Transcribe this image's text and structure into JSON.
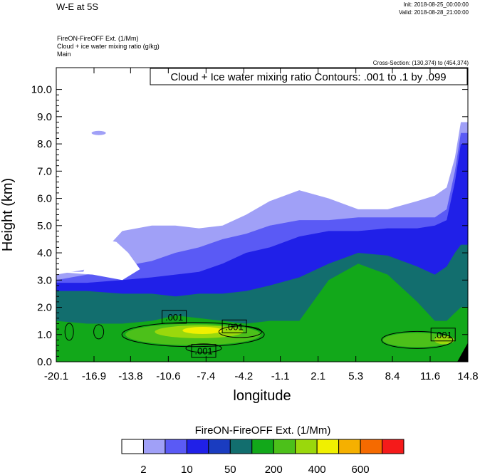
{
  "header": {
    "title": "W-E at 5S",
    "init": "Init: 2018-08-25_00:00:00",
    "valid": "Valid: 2018-08-28_21:00:00",
    "meta_line1": "FireON-FireOFF Ext.   (1/Mm)",
    "meta_line2": "Cloud + ice water mixing ratio   (g/kg)",
    "meta_line3": "Main",
    "cross_section": "Cross-Section: (130,374) to (454,374)"
  },
  "chart_data": {
    "type": "contour",
    "title": "Cloud + Ice water mixing ratio Contours: .001 to .1 by .099",
    "xlabel": "longitude",
    "ylabel": "Height (km)",
    "xlim": [
      -20.1,
      14.8
    ],
    "ylim": [
      0.0,
      10.8
    ],
    "x_ticks": [
      "-20.1",
      "-16.9",
      "-13.8",
      "-10.6",
      "-7.4",
      "-4.2",
      "-1.1",
      "2.1",
      "5.3",
      "8.4",
      "11.6",
      "14.8"
    ],
    "y_ticks": [
      "0.0",
      "1.0",
      "2.0",
      "3.0",
      "4.0",
      "5.0",
      "6.0",
      "7.0",
      "8.0",
      "9.0",
      "10.0"
    ],
    "contour_labels": [
      {
        "text": ".001",
        "x": -10.1,
        "y": 1.65
      },
      {
        "text": ".001",
        "x": -5.0,
        "y": 1.3
      },
      {
        "text": ".001",
        "x": -7.6,
        "y": 0.4
      },
      {
        "text": ".001",
        "x": 12.7,
        "y": 1.0
      }
    ],
    "colorbar": {
      "title": "FireON-FireOFF Ext.  (1/Mm)",
      "labels": [
        "2",
        "10",
        "50",
        "200",
        "400",
        "600"
      ],
      "colors": [
        "#ffffff",
        "#a0a0f7",
        "#5a5af5",
        "#2020e8",
        "#1a3cc0",
        "#126e6e",
        "#12a81a",
        "#4cc01a",
        "#9ad80c",
        "#f0f000",
        "#f5b000",
        "#f56a00",
        "#f51a1a"
      ]
    },
    "fields": {
      "profiles_x": [
        -20.1,
        -17.5,
        -14.5,
        -12.0,
        -10.0,
        -8.0,
        -6.0,
        -4.0,
        -2.0,
        0.5,
        3.0,
        5.5,
        8.0,
        10.5,
        12.0,
        13.0,
        13.7,
        14.2,
        14.8
      ],
      "top_boundary": [
        3.2,
        3.5,
        4.8,
        5.0,
        5.0,
        4.9,
        5.0,
        5.4,
        5.9,
        6.3,
        6.0,
        5.6,
        5.6,
        5.9,
        6.1,
        6.4,
        7.5,
        8.8,
        8.8
      ],
      "light_blue_top": [
        3.2,
        3.4,
        4.8,
        5.0,
        5.0,
        4.9,
        5.0,
        5.4,
        5.9,
        6.3,
        6.0,
        5.6,
        5.6,
        5.9,
        6.1,
        6.4,
        7.5,
        8.8,
        8.8
      ],
      "medium_blue_top": [
        3.0,
        3.2,
        3.5,
        3.7,
        4.0,
        4.2,
        4.5,
        4.7,
        5.0,
        5.2,
        5.2,
        5.3,
        5.3,
        5.3,
        5.3,
        5.6,
        7.0,
        8.4,
        8.4
      ],
      "royal_blue_top": [
        2.9,
        2.9,
        3.0,
        3.1,
        3.2,
        3.3,
        3.6,
        4.0,
        4.2,
        4.6,
        4.8,
        4.8,
        4.9,
        4.9,
        5.0,
        5.2,
        6.6,
        8.0,
        8.0
      ],
      "teal_top": [
        2.6,
        2.6,
        2.5,
        2.5,
        2.4,
        2.5,
        2.5,
        2.6,
        2.8,
        3.1,
        3.6,
        4.0,
        3.9,
        3.5,
        3.2,
        3.5,
        4.0,
        4.3,
        4.3
      ],
      "green_top": [
        1.5,
        1.4,
        1.4,
        1.5,
        1.7,
        1.6,
        1.5,
        1.4,
        1.5,
        1.5,
        3.0,
        3.6,
        3.2,
        2.2,
        1.5,
        1.5,
        1.8,
        2.0,
        2.0
      ],
      "whitespace_top": [
        4.7,
        3.0,
        3.0,
        3.0,
        3.0
      ]
    }
  }
}
